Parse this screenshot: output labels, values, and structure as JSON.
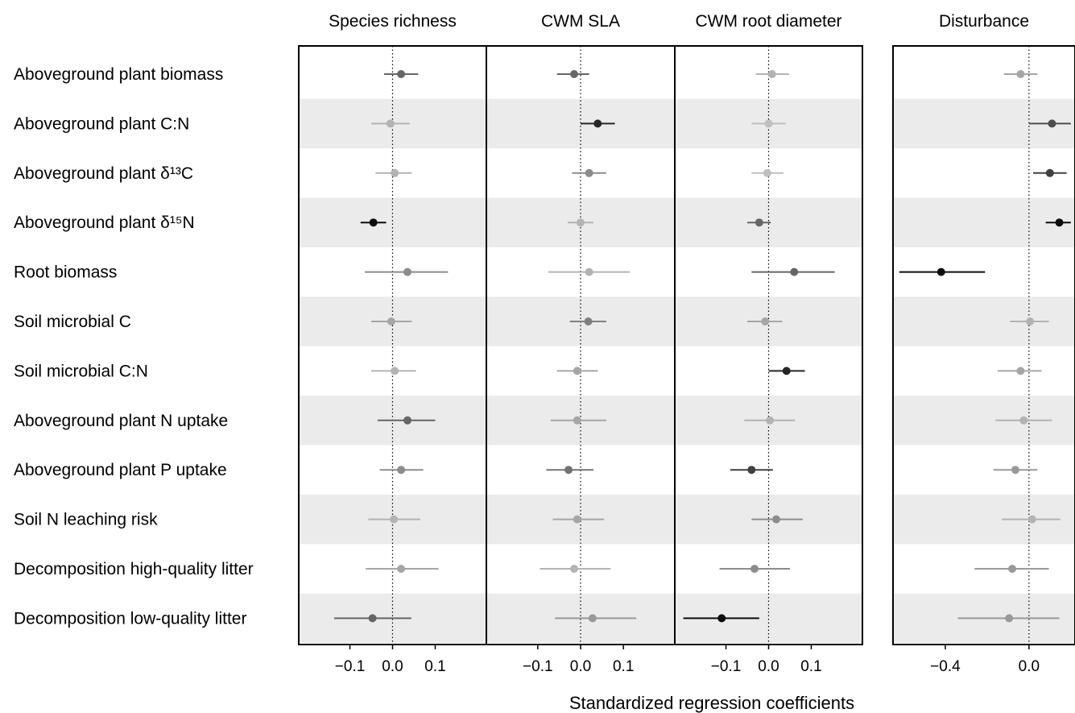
{
  "chart_data": {
    "type": "forest",
    "xlabel": "Standardized regression coefficients",
    "rows": [
      "Aboveground plant biomass",
      "Aboveground plant C:N",
      "Aboveground plant δ¹³C",
      "Aboveground plant δ¹⁵N",
      "Root biomass",
      "Soil microbial C",
      "Soil microbial C:N",
      "Aboveground plant N uptake",
      "Aboveground plant P uptake",
      "Soil N leaching risk",
      "Decomposition high-quality litter",
      "Decomposition low-quality litter"
    ],
    "panels": [
      {
        "title": "Species richness",
        "xlim": [
          -0.22,
          0.22
        ],
        "ticks": [
          -0.1,
          0.0,
          0.1
        ],
        "tick_labels": [
          "−0.1",
          "0.0",
          "0.1"
        ],
        "estimates": [
          {
            "est": 0.02,
            "lo": -0.02,
            "hi": 0.06,
            "shade": 0.6
          },
          {
            "est": -0.005,
            "lo": -0.05,
            "hi": 0.04,
            "shade": 0.3
          },
          {
            "est": 0.005,
            "lo": -0.04,
            "hi": 0.045,
            "shade": 0.3
          },
          {
            "est": -0.045,
            "lo": -0.075,
            "hi": -0.015,
            "shade": 0.95
          },
          {
            "est": 0.035,
            "lo": -0.065,
            "hi": 0.13,
            "shade": 0.45
          },
          {
            "est": -0.003,
            "lo": -0.05,
            "hi": 0.045,
            "shade": 0.35
          },
          {
            "est": 0.005,
            "lo": -0.05,
            "hi": 0.055,
            "shade": 0.3
          },
          {
            "est": 0.035,
            "lo": -0.035,
            "hi": 0.1,
            "shade": 0.6
          },
          {
            "est": 0.02,
            "lo": -0.03,
            "hi": 0.072,
            "shade": 0.45
          },
          {
            "est": 0.003,
            "lo": -0.057,
            "hi": 0.065,
            "shade": 0.3
          },
          {
            "est": 0.02,
            "lo": -0.063,
            "hi": 0.108,
            "shade": 0.35
          },
          {
            "est": -0.047,
            "lo": -0.137,
            "hi": 0.044,
            "shade": 0.6
          }
        ]
      },
      {
        "title": "CWM SLA",
        "xlim": [
          -0.22,
          0.22
        ],
        "ticks": [
          -0.1,
          0.0,
          0.1
        ],
        "tick_labels": [
          "−0.1",
          "0.0",
          "0.1"
        ],
        "estimates": [
          {
            "est": -0.015,
            "lo": -0.055,
            "hi": 0.02,
            "shade": 0.6
          },
          {
            "est": 0.04,
            "lo": 0.0,
            "hi": 0.08,
            "shade": 0.85
          },
          {
            "est": 0.02,
            "lo": -0.02,
            "hi": 0.06,
            "shade": 0.45
          },
          {
            "est": 0.0,
            "lo": -0.03,
            "hi": 0.03,
            "shade": 0.3
          },
          {
            "est": 0.02,
            "lo": -0.075,
            "hi": 0.115,
            "shade": 0.3
          },
          {
            "est": 0.018,
            "lo": -0.025,
            "hi": 0.06,
            "shade": 0.5
          },
          {
            "est": -0.008,
            "lo": -0.055,
            "hi": 0.04,
            "shade": 0.35
          },
          {
            "est": -0.008,
            "lo": -0.07,
            "hi": 0.06,
            "shade": 0.35
          },
          {
            "est": -0.028,
            "lo": -0.08,
            "hi": 0.03,
            "shade": 0.55
          },
          {
            "est": -0.008,
            "lo": -0.065,
            "hi": 0.055,
            "shade": 0.35
          },
          {
            "est": -0.015,
            "lo": -0.095,
            "hi": 0.07,
            "shade": 0.3
          },
          {
            "est": 0.028,
            "lo": -0.06,
            "hi": 0.13,
            "shade": 0.4
          }
        ]
      },
      {
        "title": "CWM root diameter",
        "xlim": [
          -0.22,
          0.22
        ],
        "ticks": [
          -0.1,
          0.0,
          0.1
        ],
        "tick_labels": [
          "−0.1",
          "0.0",
          "0.1"
        ],
        "estimates": [
          {
            "est": 0.008,
            "lo": -0.03,
            "hi": 0.048,
            "shade": 0.3
          },
          {
            "est": 0.0,
            "lo": -0.04,
            "hi": 0.04,
            "shade": 0.25
          },
          {
            "est": -0.003,
            "lo": -0.04,
            "hi": 0.035,
            "shade": 0.25
          },
          {
            "est": -0.022,
            "lo": -0.05,
            "hi": 0.005,
            "shade": 0.6
          },
          {
            "est": 0.06,
            "lo": -0.04,
            "hi": 0.155,
            "shade": 0.6
          },
          {
            "est": -0.008,
            "lo": -0.05,
            "hi": 0.032,
            "shade": 0.35
          },
          {
            "est": 0.042,
            "lo": 0.0,
            "hi": 0.085,
            "shade": 0.85
          },
          {
            "est": 0.003,
            "lo": -0.057,
            "hi": 0.062,
            "shade": 0.3
          },
          {
            "est": -0.04,
            "lo": -0.09,
            "hi": 0.01,
            "shade": 0.75
          },
          {
            "est": 0.018,
            "lo": -0.04,
            "hi": 0.08,
            "shade": 0.45
          },
          {
            "est": -0.033,
            "lo": -0.115,
            "hi": 0.05,
            "shade": 0.45
          },
          {
            "est": -0.11,
            "lo": -0.2,
            "hi": -0.022,
            "shade": 0.95
          }
        ]
      },
      {
        "title": "Disturbance",
        "xlim": [
          -0.65,
          0.22
        ],
        "ticks": [
          -0.4,
          0.0
        ],
        "tick_labels": [
          "−0.4",
          "0.0"
        ],
        "estimates": [
          {
            "est": -0.04,
            "lo": -0.12,
            "hi": 0.04,
            "shade": 0.35
          },
          {
            "est": 0.11,
            "lo": 0.0,
            "hi": 0.2,
            "shade": 0.7
          },
          {
            "est": 0.1,
            "lo": 0.02,
            "hi": 0.18,
            "shade": 0.75
          },
          {
            "est": 0.145,
            "lo": 0.08,
            "hi": 0.2,
            "shade": 0.95
          },
          {
            "est": -0.42,
            "lo": -0.62,
            "hi": -0.21,
            "shade": 0.95
          },
          {
            "est": 0.005,
            "lo": -0.09,
            "hi": 0.095,
            "shade": 0.3
          },
          {
            "est": -0.04,
            "lo": -0.15,
            "hi": 0.06,
            "shade": 0.35
          },
          {
            "est": -0.025,
            "lo": -0.16,
            "hi": 0.11,
            "shade": 0.3
          },
          {
            "est": -0.065,
            "lo": -0.17,
            "hi": 0.04,
            "shade": 0.4
          },
          {
            "est": 0.015,
            "lo": -0.13,
            "hi": 0.15,
            "shade": 0.3
          },
          {
            "est": -0.08,
            "lo": -0.26,
            "hi": 0.095,
            "shade": 0.4
          },
          {
            "est": -0.095,
            "lo": -0.34,
            "hi": 0.145,
            "shade": 0.4
          }
        ]
      }
    ]
  }
}
